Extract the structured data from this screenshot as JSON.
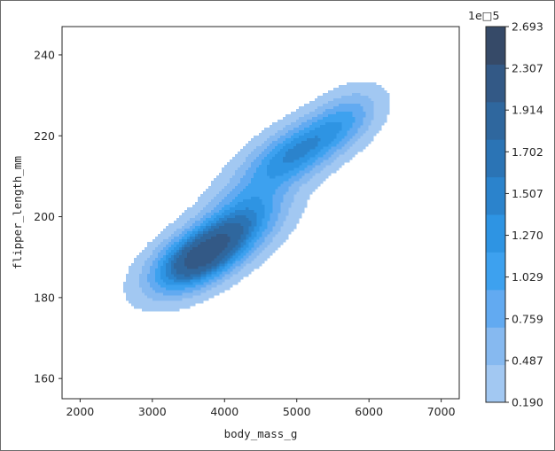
{
  "chart_data": {
    "type": "kde_contour",
    "title": "",
    "xlabel": "body_mass_g",
    "ylabel": "flipper_length_mm",
    "xlim": [
      1750,
      7250
    ],
    "ylim": [
      155,
      247
    ],
    "x_ticks": [
      2000,
      3000,
      4000,
      5000,
      6000,
      7000
    ],
    "y_ticks": [
      160,
      180,
      200,
      220,
      240
    ],
    "grid": false,
    "legend": "none",
    "colorbar": {
      "label": "",
      "offset_text": "1e□5",
      "levels": [
        0.19,
        0.487,
        0.759,
        1.029,
        1.27,
        1.507,
        1.702,
        1.914,
        2.307,
        2.693
      ],
      "tick_labels": [
        "0.190",
        "0.487",
        "0.759",
        "1.029",
        "1.270",
        "1.507",
        "1.702",
        "1.914",
        "2.307",
        "2.693"
      ],
      "colors": [
        "#a2c8f2",
        "#86b9f0",
        "#62aaf1",
        "#3da1ef",
        "#2e94e3",
        "#2b83cc",
        "#2b74b5",
        "#2f679e",
        "#335986",
        "#364a68"
      ]
    },
    "density_components": [
      {
        "x_mean": 3650,
        "y_mean": 190,
        "x_sd": 460,
        "y_sd": 6.0,
        "corr": 0.55,
        "weight": 1.0
      },
      {
        "x_mean": 4300,
        "y_mean": 200,
        "x_sd": 420,
        "y_sd": 6.0,
        "corr": 0.4,
        "weight": 0.45
      },
      {
        "x_mean": 5000,
        "y_mean": 216,
        "x_sd": 520,
        "y_sd": 6.5,
        "corr": 0.65,
        "weight": 0.62
      },
      {
        "x_mean": 5700,
        "y_mean": 225,
        "x_sd": 330,
        "y_sd": 5.0,
        "corr": 0.4,
        "weight": 0.25
      }
    ]
  }
}
